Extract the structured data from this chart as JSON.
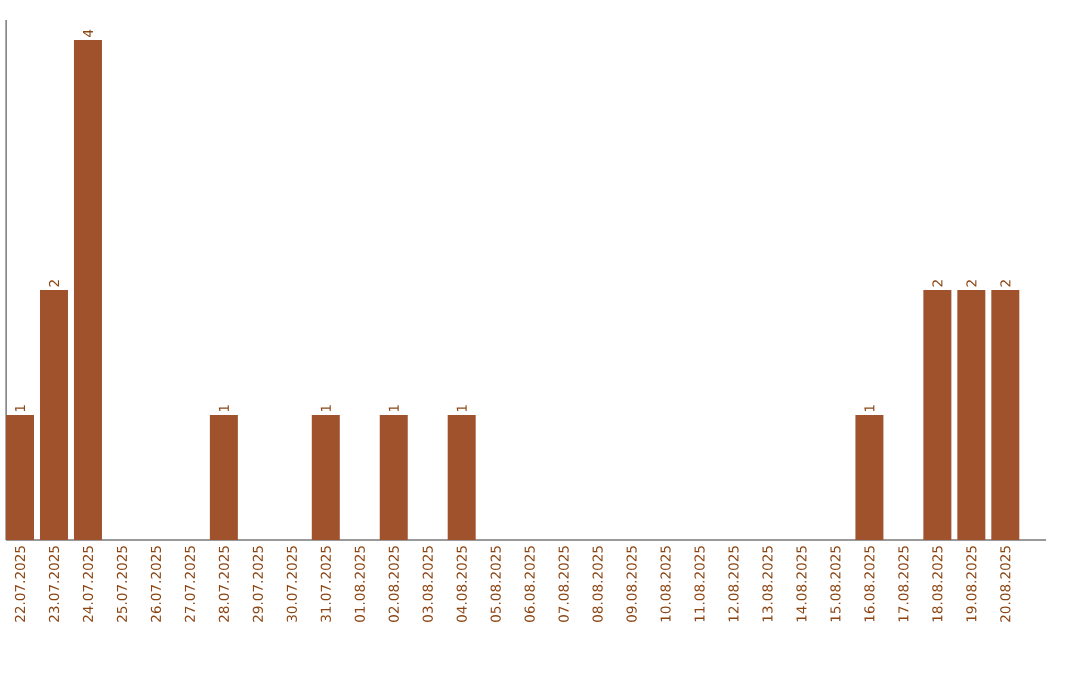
{
  "chart_data": {
    "type": "bar",
    "categories": [
      "22.07.2025",
      "23.07.2025",
      "24.07.2025",
      "25.07.2025",
      "26.07.2025",
      "27.07.2025",
      "28.07.2025",
      "29.07.2025",
      "30.07.2025",
      "31.07.2025",
      "01.08.2025",
      "02.08.2025",
      "03.08.2025",
      "04.08.2025",
      "05.08.2025",
      "06.08.2025",
      "07.08.2025",
      "08.08.2025",
      "09.08.2025",
      "10.08.2025",
      "11.08.2025",
      "12.08.2025",
      "13.08.2025",
      "14.08.2025",
      "15.08.2025",
      "16.08.2025",
      "17.08.2025",
      "18.08.2025",
      "19.08.2025",
      "20.08.2025"
    ],
    "values": [
      1,
      2,
      4,
      0,
      0,
      0,
      1,
      0,
      0,
      1,
      0,
      1,
      0,
      1,
      0,
      0,
      0,
      0,
      0,
      0,
      0,
      0,
      0,
      0,
      0,
      1,
      0,
      2,
      2,
      2
    ],
    "value_labels": [
      "1",
      "2",
      "4",
      null,
      null,
      null,
      "1",
      null,
      null,
      "1",
      null,
      "1",
      null,
      "1",
      null,
      null,
      null,
      null,
      null,
      null,
      null,
      null,
      null,
      null,
      null,
      "1",
      null,
      "2",
      "2",
      "2"
    ],
    "color": "#a0522d",
    "ylim": [
      0,
      4.16
    ],
    "tick_labels": "x",
    "grid": false
  }
}
